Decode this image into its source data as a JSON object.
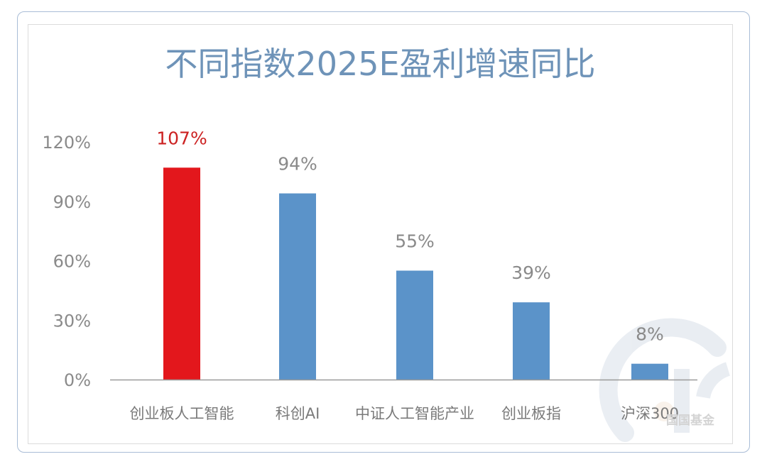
{
  "chart_data": {
    "type": "bar",
    "title": "不同指数2025E盈利增速同比",
    "categories": [
      "创业板人工智能",
      "科创AI",
      "中证人工智能产业",
      "创业板指",
      "沪深300"
    ],
    "values": [
      107,
      94,
      55,
      39,
      8
    ],
    "data_labels": [
      "107%",
      "94%",
      "55%",
      "39%",
      "8%"
    ],
    "yticks": [
      "0%",
      "30%",
      "60%",
      "90%",
      "120%"
    ],
    "ytick_values": [
      0,
      30,
      60,
      90,
      120
    ],
    "ylim": [
      0,
      120
    ],
    "xlabel": "",
    "ylabel": "",
    "grid": false,
    "legend": "none",
    "colors": {
      "highlight_bar": "#e3171c",
      "bar": "#5b93c9",
      "highlight_label": "#cc2222",
      "label": "#8a8a8a",
      "title": "#6e93b8",
      "axis": "#9a9a9a"
    },
    "highlight_index": 0
  },
  "watermark": {
    "text": "国国基金",
    "logo_icon": "fund-logo-icon"
  }
}
